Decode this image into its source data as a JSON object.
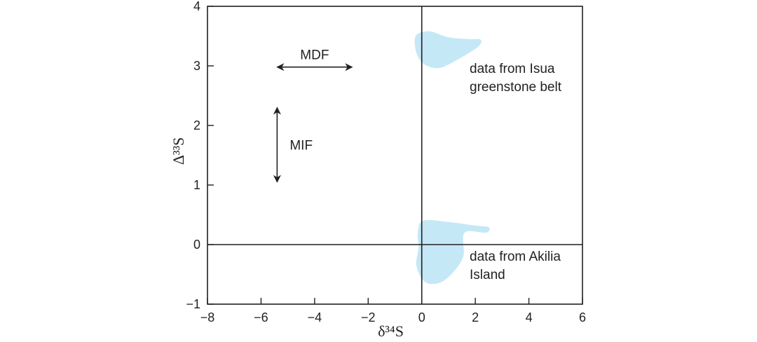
{
  "chart_data": {
    "type": "scatter",
    "title": "",
    "xlabel": "δ³⁴S",
    "ylabel": "Δ³³S",
    "xlim": [
      -8,
      6
    ],
    "ylim": [
      -1,
      4
    ],
    "x_ticks": [
      -8,
      -6,
      -4,
      -2,
      0,
      2,
      4,
      6
    ],
    "y_ticks": [
      -1,
      0,
      1,
      2,
      3,
      4
    ],
    "x_tick_labels": [
      "−8",
      "−6",
      "−4",
      "−2",
      "0",
      "2",
      "4",
      "6"
    ],
    "y_tick_labels": [
      "−1",
      "0",
      "1",
      "2",
      "3",
      "4"
    ],
    "reference_lines": {
      "x0": true,
      "y0": true
    },
    "grid": false,
    "legend": "none",
    "regions": [
      {
        "label_lines": [
          "data from Isua",
          "greenstone belt"
        ],
        "color": "#c5e8f7",
        "outline": [
          [
            -0.2,
            3.52
          ],
          [
            0.3,
            3.58
          ],
          [
            1.0,
            3.48
          ],
          [
            1.8,
            3.45
          ],
          [
            2.2,
            3.44
          ],
          [
            2.1,
            3.32
          ],
          [
            1.4,
            3.12
          ],
          [
            0.7,
            2.97
          ],
          [
            0.2,
            3.0
          ],
          [
            -0.1,
            3.12
          ],
          [
            -0.25,
            3.32
          ]
        ]
      },
      {
        "label_lines": [
          "data from Akilia",
          "Island"
        ],
        "color": "#c5e8f7",
        "outline": [
          [
            0.05,
            0.4
          ],
          [
            1.0,
            0.38
          ],
          [
            2.0,
            0.32
          ],
          [
            2.5,
            0.29
          ],
          [
            2.4,
            0.2
          ],
          [
            1.6,
            0.2
          ],
          [
            1.55,
            -0.2
          ],
          [
            1.1,
            -0.5
          ],
          [
            0.6,
            -0.65
          ],
          [
            0.1,
            -0.62
          ],
          [
            -0.2,
            -0.35
          ],
          [
            -0.12,
            -0.05
          ],
          [
            -0.15,
            0.2
          ]
        ]
      }
    ],
    "arrows": [
      {
        "label": "MDF",
        "orientation": "horizontal",
        "from": [
          -5.4,
          2.98
        ],
        "to": [
          -2.6,
          2.98
        ]
      },
      {
        "label": "MIF",
        "orientation": "vertical",
        "from": [
          -5.4,
          1.05
        ],
        "to": [
          -5.4,
          2.3
        ]
      }
    ],
    "colors": {
      "ink": "#231f20",
      "region": "#c5e8f7"
    }
  }
}
